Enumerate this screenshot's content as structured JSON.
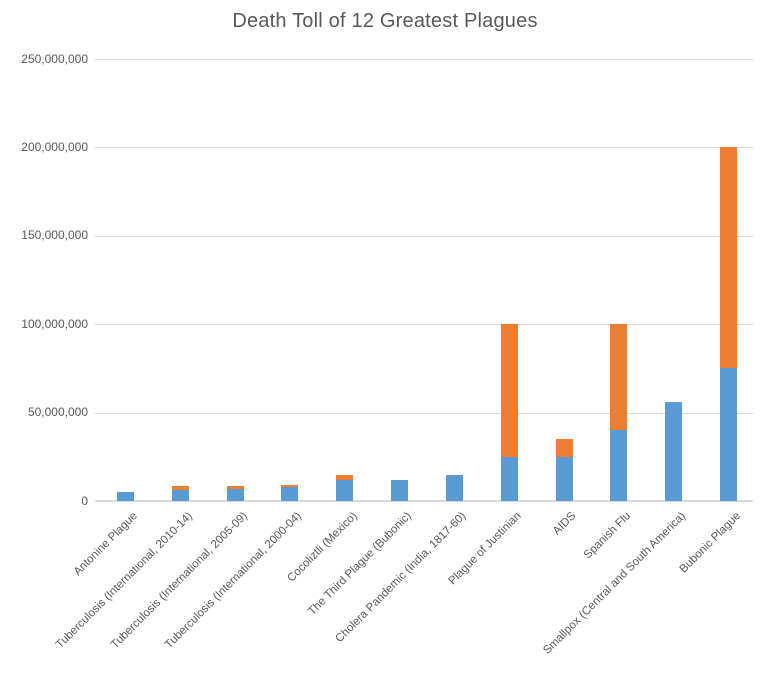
{
  "chart_data": {
    "type": "bar",
    "stacked": true,
    "title": "Death Toll of 12 Greatest Plagues",
    "categories": [
      "Antonine Plague",
      "Tuberculosis (International, 2010-14)",
      "Tuberculosis (International, 2005-09)",
      "Tuberculosis (International, 2000-04)",
      "Cocoliztli (Mexico)",
      "The Third Plague (Bubonic)",
      "Cholera Pandemic (India, 1817-60)",
      "Plague of Justinian",
      "AIDS",
      "Spanish Flu",
      "Smallpox (Central and South America)",
      "Bubonic Plague"
    ],
    "series": [
      {
        "name": "blue",
        "color": "#5B9BD5",
        "values": [
          5000000,
          6500000,
          7000000,
          8000000,
          12000000,
          12000000,
          15000000,
          25000000,
          25000000,
          40000000,
          56000000,
          75000000
        ]
      },
      {
        "name": "orange",
        "color": "#ED7D31",
        "values": [
          0,
          2000000,
          1500000,
          1000000,
          3000000,
          0,
          0,
          75000000,
          10000000,
          60000000,
          0,
          125000000
        ]
      }
    ],
    "stacked_totals": [
      5000000,
      8500000,
      8500000,
      9000000,
      15000000,
      12000000,
      15000000,
      100000000,
      35000000,
      100000000,
      56000000,
      200000000
    ],
    "xlabel": "",
    "ylabel": "",
    "ylim": [
      0,
      250000000
    ],
    "yticks": [
      0,
      50000000,
      100000000,
      150000000,
      200000000,
      250000000
    ],
    "ytick_labels": [
      "0",
      "50,000,000",
      "100,000,000",
      "150,000,000",
      "200,000,000",
      "250,000,000"
    ],
    "grid": "horizontal-only",
    "legend": "none",
    "colors": {
      "grid": "#D9D9D9",
      "axis_text": "#595959",
      "title_text": "#595959",
      "background": "#FFFFFF"
    }
  }
}
